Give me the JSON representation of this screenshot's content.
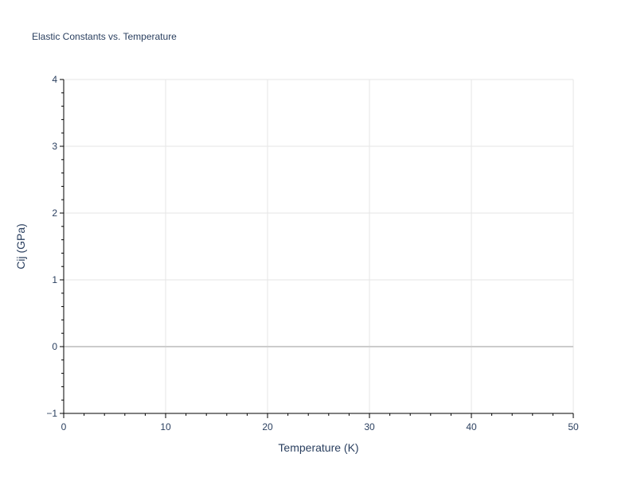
{
  "chart_data": {
    "type": "line",
    "title": "Elastic Constants vs. Temperature",
    "xlabel": "Temperature (K)",
    "ylabel": "Cij (GPa)",
    "xlim": [
      0,
      50
    ],
    "ylim": [
      -1,
      4
    ],
    "xticks": [
      0,
      10,
      20,
      30,
      40,
      50
    ],
    "yticks": [
      -1,
      0,
      1,
      2,
      3,
      4
    ],
    "ytick_labels": [
      "−1",
      "0",
      "1",
      "2",
      "3",
      "4"
    ],
    "x_minor_step": 2,
    "y_minor_step": 0.2,
    "grid": true,
    "series": [],
    "colors": {
      "grid": "#e5e5e5",
      "zeroline": "#cccccc",
      "axis": "#000000",
      "text": "#2a3f5f"
    }
  }
}
